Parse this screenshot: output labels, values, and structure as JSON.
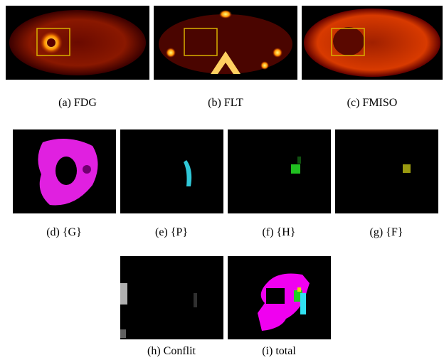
{
  "panels": [
    {
      "caption": "(a)  FDG"
    },
    {
      "caption": "(b)  FLT"
    },
    {
      "caption": "(c)  FMISO"
    },
    {
      "caption": "(d)  {G}"
    },
    {
      "caption": "(e)  {P}"
    },
    {
      "caption": "(f)  {H}"
    },
    {
      "caption": "(g)  {F}"
    },
    {
      "caption": "(h)  Conflit"
    },
    {
      "caption": "(i)  total"
    }
  ]
}
